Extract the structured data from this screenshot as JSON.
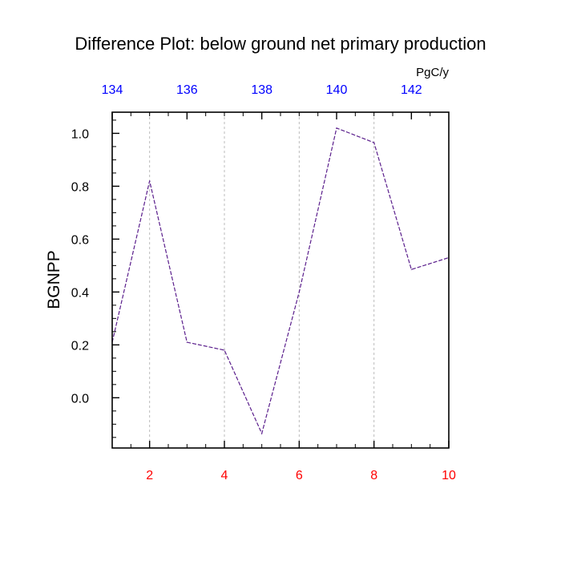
{
  "chart_data": {
    "type": "line",
    "title": "Difference Plot: below ground net primary production",
    "ylabel": "BGNPP",
    "top_axis_unit": "PgC/y",
    "x": [
      1,
      2,
      3,
      4,
      5,
      6,
      7,
      8,
      9,
      10
    ],
    "series": [
      {
        "values": [
          0.21,
          0.82,
          0.21,
          0.18,
          -0.135,
          0.4,
          1.02,
          0.965,
          0.485,
          0.53
        ]
      }
    ],
    "xlim": [
      1,
      10
    ],
    "ylim": [
      -0.19,
      1.08
    ],
    "x_ticks": [
      2,
      4,
      6,
      8,
      10
    ],
    "x_tick_labels": [
      "2",
      "4",
      "6",
      "8",
      "10"
    ],
    "y_ticks": [
      0.0,
      0.2,
      0.4,
      0.6,
      0.8,
      1.0
    ],
    "y_tick_labels": [
      "0.0",
      "0.2",
      "0.4",
      "0.6",
      "0.8",
      "1.0"
    ],
    "top_axis": {
      "range": [
        134,
        143
      ],
      "ticks": [
        134,
        136,
        138,
        140,
        142
      ],
      "tick_labels": [
        "134",
        "136",
        "138",
        "140",
        "142"
      ]
    },
    "grid": "vertical dashed at major x ticks",
    "colors": {
      "line": "#5a1e8c",
      "bottom_ticks": "#ff0000",
      "top_ticks": "#0000ff",
      "grid": "#bbbbbb"
    }
  }
}
